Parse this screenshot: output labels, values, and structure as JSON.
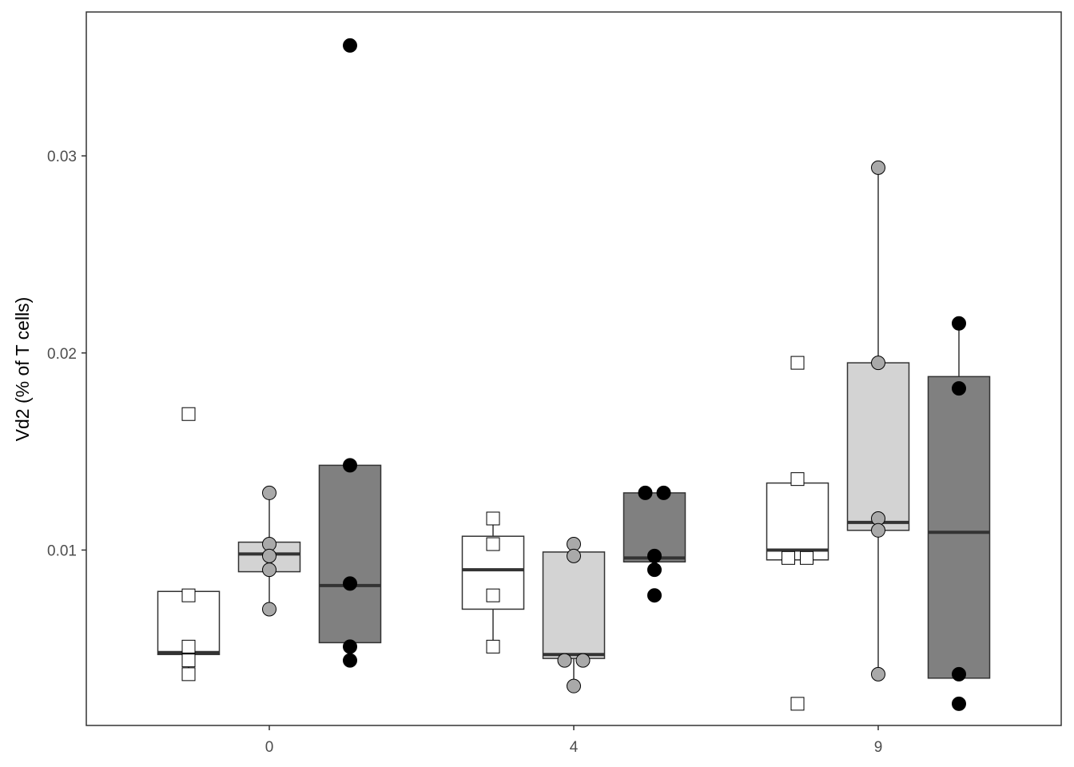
{
  "chart_data": {
    "type": "boxplot",
    "title": "",
    "xlabel": "",
    "ylabel": "Vd2 (% of T cells)",
    "x_categories": [
      "0",
      "4",
      "9"
    ],
    "y_ticks": [
      0.01,
      0.02,
      0.03
    ],
    "y_tick_labels": [
      "0.01",
      "0.02",
      "0.03"
    ],
    "ylim": [
      0.0011,
      0.0373
    ],
    "grid": false,
    "legend": "none",
    "groups": [
      {
        "box_fill": "#ffffff",
        "point_shape": "square",
        "point_fill": "#ffffff",
        "boxes": [
          {
            "x": "0",
            "q1": 0.0047,
            "median": 0.0048,
            "q3": 0.0079,
            "whisker_low": 0.0037,
            "whisker_high": 0.0079,
            "points": [
              0.0077,
              0.0051,
              0.0044,
              0.0037
            ],
            "outliers": [
              0.0169
            ]
          },
          {
            "x": "4",
            "q1": 0.007,
            "median": 0.009,
            "q3": 0.0107,
            "whisker_low": 0.0051,
            "whisker_high": 0.0116,
            "points": [
              0.0116,
              0.0103,
              0.0077,
              0.0051
            ],
            "outliers": []
          },
          {
            "x": "9",
            "q1": 0.0095,
            "median": 0.01,
            "q3": 0.0134,
            "whisker_low": 0.0095,
            "whisker_high": 0.0134,
            "points": [
              0.0136,
              0.0096,
              0.0096
            ],
            "outliers": [
              0.0195,
              0.0022
            ]
          }
        ]
      },
      {
        "box_fill": "#d3d3d3",
        "point_shape": "circle",
        "point_fill": "#a9a9a9",
        "boxes": [
          {
            "x": "0",
            "q1": 0.0089,
            "median": 0.0098,
            "q3": 0.0104,
            "whisker_low": 0.007,
            "whisker_high": 0.0129,
            "points": [
              0.0129,
              0.0103,
              0.0097,
              0.009,
              0.007
            ],
            "outliers": []
          },
          {
            "x": "4",
            "q1": 0.0045,
            "median": 0.0047,
            "q3": 0.0099,
            "whisker_low": 0.0031,
            "whisker_high": 0.0099,
            "points": [
              0.0103,
              0.0097,
              0.0044,
              0.0044,
              0.0031
            ],
            "outliers": []
          },
          {
            "x": "9",
            "q1": 0.011,
            "median": 0.0114,
            "q3": 0.0195,
            "whisker_low": 0.0037,
            "whisker_high": 0.0294,
            "points": [
              0.0294,
              0.0195,
              0.0116,
              0.011,
              0.0037
            ],
            "outliers": []
          }
        ]
      },
      {
        "box_fill": "#808080",
        "point_shape": "circle",
        "point_fill": "#000000",
        "boxes": [
          {
            "x": "0",
            "q1": 0.0053,
            "median": 0.0082,
            "q3": 0.0143,
            "whisker_low": 0.0053,
            "whisker_high": 0.0143,
            "points": [
              0.0143,
              0.0083,
              0.0051,
              0.0044
            ],
            "outliers": [
              0.0356
            ]
          },
          {
            "x": "4",
            "q1": 0.0094,
            "median": 0.0096,
            "q3": 0.0129,
            "whisker_low": 0.0094,
            "whisker_high": 0.0129,
            "points": [
              0.0129,
              0.0129,
              0.0097,
              0.009,
              0.0077
            ],
            "outliers": []
          },
          {
            "x": "9",
            "q1": 0.0035,
            "median": 0.0109,
            "q3": 0.0188,
            "whisker_low": 0.0035,
            "whisker_high": 0.0215,
            "points": [
              0.0215,
              0.0182,
              0.0037,
              0.0022
            ],
            "outliers": []
          }
        ]
      }
    ]
  }
}
